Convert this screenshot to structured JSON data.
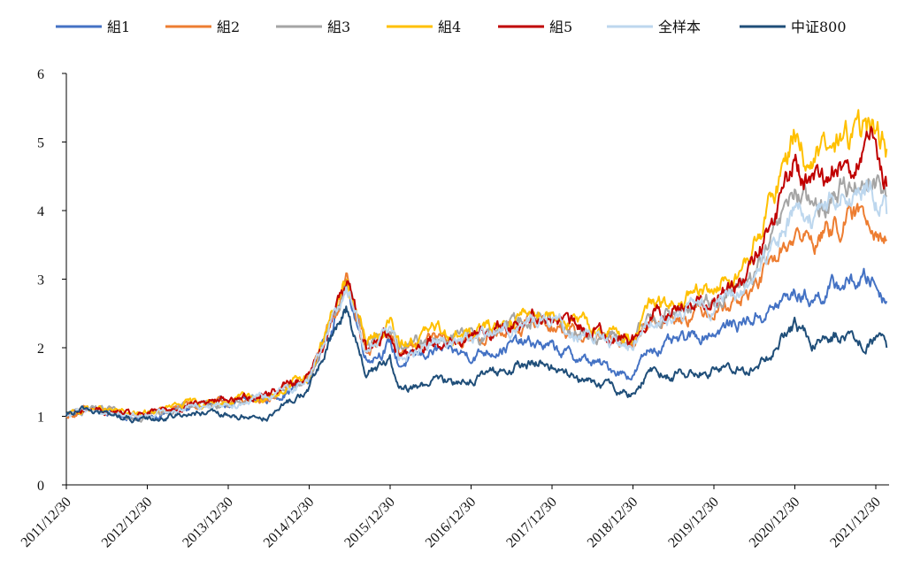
{
  "chart_data": {
    "type": "line",
    "title": "",
    "xlabel": "",
    "ylabel": "",
    "ylim": [
      0,
      6
    ],
    "y_ticks": [
      "0",
      "1",
      "2",
      "3",
      "4",
      "5",
      "6"
    ],
    "x_ticks": [
      "2011/12/30",
      "2012/12/30",
      "2013/12/30",
      "2014/12/30",
      "2015/12/30",
      "2016/12/30",
      "2017/12/30",
      "2018/12/30",
      "2019/12/30",
      "2020/12/30",
      "2021/12/30"
    ],
    "x_range": [
      2011.99,
      2022.15
    ],
    "legend_position": "top",
    "series": [
      {
        "name": "組1",
        "color": "#4472c4",
        "x": [
          2011.99,
          2012.25,
          2012.9,
          2013.5,
          2014.0,
          2014.5,
          2014.99,
          2015.45,
          2015.7,
          2015.99,
          2016.1,
          2016.5,
          2016.99,
          2017.5,
          2017.85,
          2018.3,
          2018.99,
          2019.2,
          2019.5,
          2019.99,
          2020.4,
          2020.7,
          2020.99,
          2021.2,
          2021.6,
          2021.95,
          2022.12
        ],
        "y": [
          1.0,
          1.1,
          0.97,
          1.12,
          1.18,
          1.25,
          1.52,
          2.92,
          1.85,
          2.05,
          1.75,
          1.95,
          1.9,
          2.05,
          2.05,
          1.85,
          1.6,
          2.0,
          2.05,
          2.25,
          2.4,
          2.55,
          2.8,
          2.72,
          2.95,
          3.0,
          2.68
        ]
      },
      {
        "name": "組2",
        "color": "#ed7d31",
        "x": [
          2011.99,
          2012.25,
          2012.9,
          2013.5,
          2014.0,
          2014.5,
          2014.99,
          2015.45,
          2015.7,
          2015.99,
          2016.1,
          2016.5,
          2016.99,
          2017.5,
          2017.85,
          2018.3,
          2018.99,
          2019.2,
          2019.5,
          2019.99,
          2020.4,
          2020.7,
          2020.99,
          2021.2,
          2021.6,
          2021.95,
          2022.12
        ],
        "y": [
          1.0,
          1.1,
          1.0,
          1.15,
          1.2,
          1.28,
          1.55,
          2.98,
          1.95,
          2.25,
          1.9,
          2.1,
          2.1,
          2.3,
          2.4,
          2.2,
          2.05,
          2.4,
          2.45,
          2.6,
          2.75,
          3.2,
          3.65,
          3.55,
          3.85,
          3.95,
          3.58
        ]
      },
      {
        "name": "組3",
        "color": "#a5a5a5",
        "x": [
          2011.99,
          2012.25,
          2012.9,
          2013.5,
          2014.0,
          2014.5,
          2014.99,
          2015.45,
          2015.7,
          2015.99,
          2016.1,
          2016.5,
          2016.99,
          2017.5,
          2017.85,
          2018.3,
          2018.99,
          2019.2,
          2019.5,
          2019.99,
          2020.4,
          2020.7,
          2020.99,
          2021.2,
          2021.6,
          2021.95,
          2022.12
        ],
        "y": [
          1.0,
          1.1,
          1.0,
          1.15,
          1.2,
          1.3,
          1.55,
          2.95,
          2.0,
          2.3,
          1.95,
          2.15,
          2.12,
          2.35,
          2.5,
          2.25,
          2.08,
          2.45,
          2.5,
          2.7,
          2.9,
          3.5,
          4.3,
          3.95,
          4.35,
          4.55,
          4.2
        ]
      },
      {
        "name": "組4",
        "color": "#ffc000",
        "x": [
          2011.99,
          2012.25,
          2012.9,
          2013.5,
          2014.0,
          2014.5,
          2014.99,
          2015.45,
          2015.7,
          2015.99,
          2016.1,
          2016.5,
          2016.99,
          2017.5,
          2017.85,
          2018.3,
          2018.99,
          2019.2,
          2019.5,
          2019.99,
          2020.4,
          2020.7,
          2020.99,
          2021.2,
          2021.6,
          2021.95,
          2022.12
        ],
        "y": [
          1.0,
          1.12,
          1.02,
          1.18,
          1.22,
          1.3,
          1.58,
          3.0,
          2.05,
          2.4,
          2.0,
          2.25,
          2.2,
          2.4,
          2.58,
          2.35,
          2.15,
          2.6,
          2.6,
          2.85,
          3.2,
          4.1,
          5.2,
          4.65,
          5.05,
          5.2,
          4.9
        ]
      },
      {
        "name": "組5",
        "color": "#c00000",
        "x": [
          2011.99,
          2012.25,
          2012.9,
          2013.5,
          2014.0,
          2014.5,
          2014.99,
          2015.45,
          2015.7,
          2015.99,
          2016.1,
          2016.5,
          2016.99,
          2017.5,
          2017.85,
          2018.3,
          2018.99,
          2019.2,
          2019.5,
          2019.99,
          2020.4,
          2020.7,
          2020.99,
          2021.2,
          2021.6,
          2021.95,
          2022.12
        ],
        "y": [
          1.0,
          1.1,
          1.0,
          1.18,
          1.25,
          1.35,
          1.6,
          2.95,
          1.95,
          2.3,
          1.9,
          2.1,
          2.15,
          2.35,
          2.52,
          2.3,
          2.12,
          2.55,
          2.55,
          2.75,
          3.0,
          3.8,
          4.7,
          4.3,
          4.7,
          4.85,
          4.35
        ]
      },
      {
        "name": "全样本",
        "color": "#bdd7ee",
        "x": [
          2011.99,
          2012.25,
          2012.9,
          2013.5,
          2014.0,
          2014.5,
          2014.99,
          2015.45,
          2015.7,
          2015.99,
          2016.1,
          2016.5,
          2016.99,
          2017.5,
          2017.85,
          2018.3,
          2018.99,
          2019.2,
          2019.5,
          2019.99,
          2020.4,
          2020.7,
          2020.99,
          2021.2,
          2021.6,
          2021.95,
          2022.12
        ],
        "y": [
          1.0,
          1.1,
          1.0,
          1.15,
          1.2,
          1.28,
          1.55,
          2.95,
          1.95,
          2.25,
          1.9,
          2.1,
          2.1,
          2.3,
          2.45,
          2.2,
          2.0,
          2.45,
          2.45,
          2.65,
          2.85,
          3.4,
          4.0,
          3.85,
          4.2,
          4.3,
          3.95
        ]
      },
      {
        "name": "中证800",
        "color": "#1f4e79",
        "x": [
          2011.99,
          2012.25,
          2012.9,
          2013.5,
          2014.0,
          2014.5,
          2014.99,
          2015.45,
          2015.7,
          2015.99,
          2016.1,
          2016.5,
          2016.99,
          2017.5,
          2017.85,
          2018.3,
          2018.99,
          2019.2,
          2019.5,
          2019.99,
          2020.4,
          2020.7,
          2020.99,
          2021.2,
          2021.6,
          2021.95,
          2022.12
        ],
        "y": [
          1.0,
          1.1,
          0.92,
          1.05,
          1.0,
          1.0,
          1.4,
          2.6,
          1.6,
          1.8,
          1.35,
          1.5,
          1.55,
          1.7,
          1.8,
          1.55,
          1.3,
          1.7,
          1.6,
          1.7,
          1.65,
          1.9,
          2.3,
          2.1,
          2.2,
          2.12,
          2.0
        ]
      }
    ]
  }
}
